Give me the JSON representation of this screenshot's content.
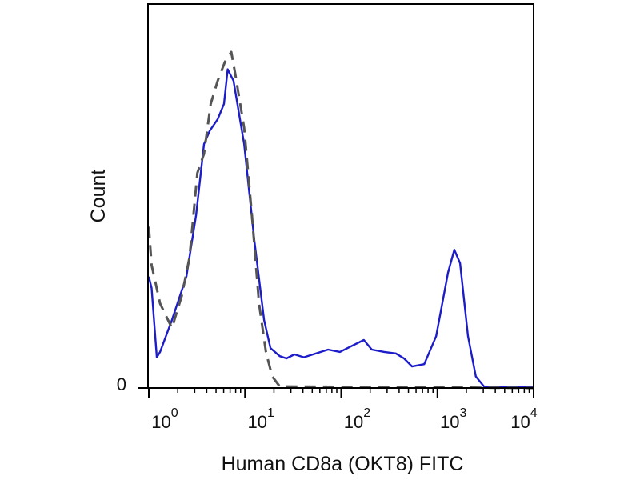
{
  "chart_data": {
    "type": "line",
    "title": "",
    "xlabel": "Human CD8a (OKT8) FITC",
    "ylabel": "Count",
    "x_scale": "log",
    "xlim": [
      1,
      10000
    ],
    "ylim": [
      0,
      100
    ],
    "x_ticks": [
      {
        "base": "10",
        "exp": "0",
        "value": 1
      },
      {
        "base": "10",
        "exp": "1",
        "value": 10
      },
      {
        "base": "10",
        "exp": "2",
        "value": 100
      },
      {
        "base": "10",
        "exp": "3",
        "value": 1000
      },
      {
        "base": "10",
        "exp": "4",
        "value": 10000
      }
    ],
    "y_ticks": [
      {
        "label": "0",
        "value": 0
      }
    ],
    "grid": false,
    "legend": "none",
    "series": [
      {
        "style": "solid",
        "color": "#1c1cc8",
        "x": [
          1.0,
          1.07,
          1.21,
          1.31,
          1.74,
          2.46,
          3.1,
          3.75,
          4.3,
          5.2,
          6.05,
          6.6,
          7.6,
          9.8,
          12.5,
          15.8,
          18.4,
          23,
          27,
          32.6,
          41,
          73,
          97,
          130,
          172,
          208,
          280,
          370,
          450,
          545,
          730,
          970,
          1290,
          1500,
          1720,
          2080,
          2510,
          3050,
          10000
        ],
        "y": [
          29,
          26,
          8,
          9.4,
          17.7,
          29,
          45,
          63.5,
          67,
          70,
          74,
          83,
          80,
          63.5,
          38.5,
          17.7,
          10.4,
          8.3,
          7.7,
          8.75,
          8,
          10,
          9.4,
          11,
          12.5,
          10,
          9.4,
          9,
          7.7,
          5.6,
          6.2,
          13.5,
          30,
          36,
          32.5,
          13.5,
          3,
          0.4,
          0.2
        ]
      },
      {
        "style": "dashed",
        "color": "#555555",
        "x": [
          1.0,
          1.07,
          1.31,
          1.74,
          2.2,
          2.65,
          3.2,
          3.75,
          4.4,
          5.2,
          6.2,
          7.2,
          7.9,
          9.8,
          11.8,
          14,
          16.5,
          19.2,
          23,
          10000
        ],
        "y": [
          42,
          32,
          22,
          15.6,
          24,
          34,
          56,
          61,
          74,
          80,
          85,
          87.5,
          82,
          67.7,
          45,
          22,
          9.4,
          3,
          0.4,
          0
        ]
      }
    ]
  }
}
